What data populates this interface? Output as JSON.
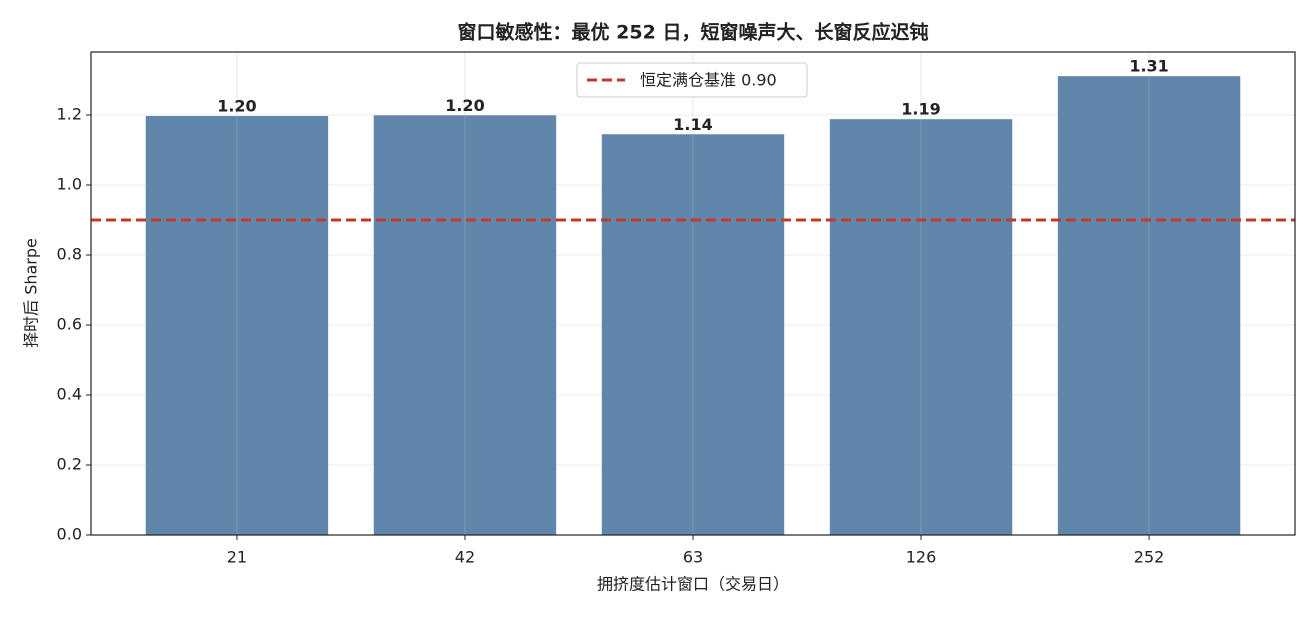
{
  "chart_data": {
    "type": "bar",
    "title": "窗口敏感性：最优 252 日，短窗噪声大、长窗反应迟钝",
    "x_label": "拥挤度估计窗口（交易日）",
    "y_label": "择时后 Sharpe",
    "categories": [
      "21",
      "42",
      "63",
      "126",
      "252"
    ],
    "values": [
      1.197,
      1.199,
      1.145,
      1.188,
      1.311
    ],
    "value_labels": [
      "1.20",
      "1.20",
      "1.14",
      "1.19",
      "1.31"
    ],
    "color": "#6186ab",
    "ylim": [
      0,
      1.38
    ],
    "yticks": [
      {
        "value": 0,
        "label": "0.0"
      },
      {
        "value": 0.2,
        "label": "0.2"
      },
      {
        "value": 0.4,
        "label": "0.4"
      },
      {
        "value": 0.6,
        "label": "0.6"
      },
      {
        "value": 0.8,
        "label": "0.8"
      },
      {
        "value": 1,
        "label": "1.0"
      },
      {
        "value": 1.2,
        "label": "1.2"
      }
    ],
    "grid": true,
    "reference_line": {
      "value": 0.9,
      "label": "恒定满仓基准 0.90",
      "color": "#c0392b"
    }
  }
}
